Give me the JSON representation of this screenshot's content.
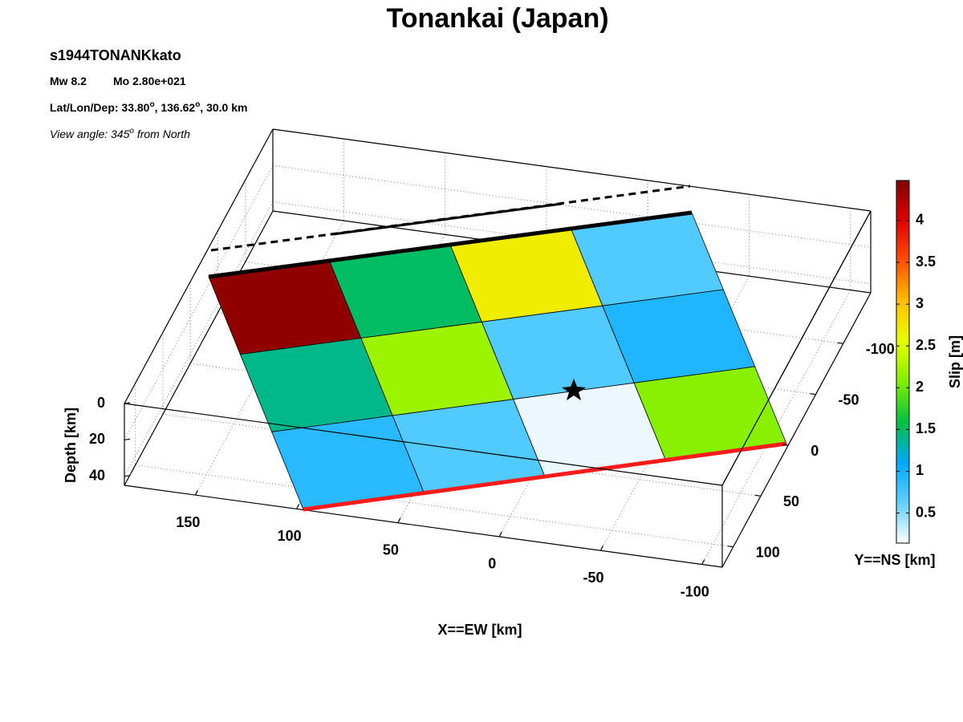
{
  "chart_data": {
    "type": "fault-slip-3d",
    "title": "Tonankai (Japan)",
    "subtitle": "s1944TONANKkato",
    "magnitude": "Mw 8.2",
    "moment": "Mo 2.80e+021",
    "location_text": [
      "Lat/Lon/Dep: 33.80",
      "o",
      ", 136.62",
      "o",
      ", 30.0 km"
    ],
    "view_text": [
      "View angle: 345",
      "o",
      " from North"
    ],
    "xlabel": "X==EW [km]",
    "ylabel": "Y==NS [km]",
    "zlabel": "Depth [km]",
    "xlim": [
      -110,
      185
    ],
    "xticks": [
      -100,
      -50,
      0,
      50,
      100,
      150
    ],
    "ylim": [
      -150,
      120
    ],
    "yticks": [
      -100,
      -50,
      0,
      50,
      100
    ],
    "zlim": [
      0,
      45
    ],
    "zticks": [
      0,
      20,
      40
    ],
    "grid": true,
    "slip": [
      [
        4.4,
        1.5,
        2.7,
        0.7
      ],
      [
        1.4,
        2.2,
        0.7,
        0.95
      ],
      [
        0.9,
        0.7,
        0.2,
        2.1
      ]
    ],
    "colorbar": {
      "label": "Slip [m]",
      "clim": [
        0.14,
        4.48
      ],
      "ticks": [
        0.5,
        1,
        1.5,
        2,
        2.5,
        3,
        3.5,
        4
      ],
      "colormap": [
        "#ffffff",
        "#60d0ff",
        "#00a8ff",
        "#00c040",
        "#80f000",
        "#e8ff00",
        "#ffc000",
        "#ff5000",
        "#e00000",
        "#800000"
      ]
    }
  }
}
